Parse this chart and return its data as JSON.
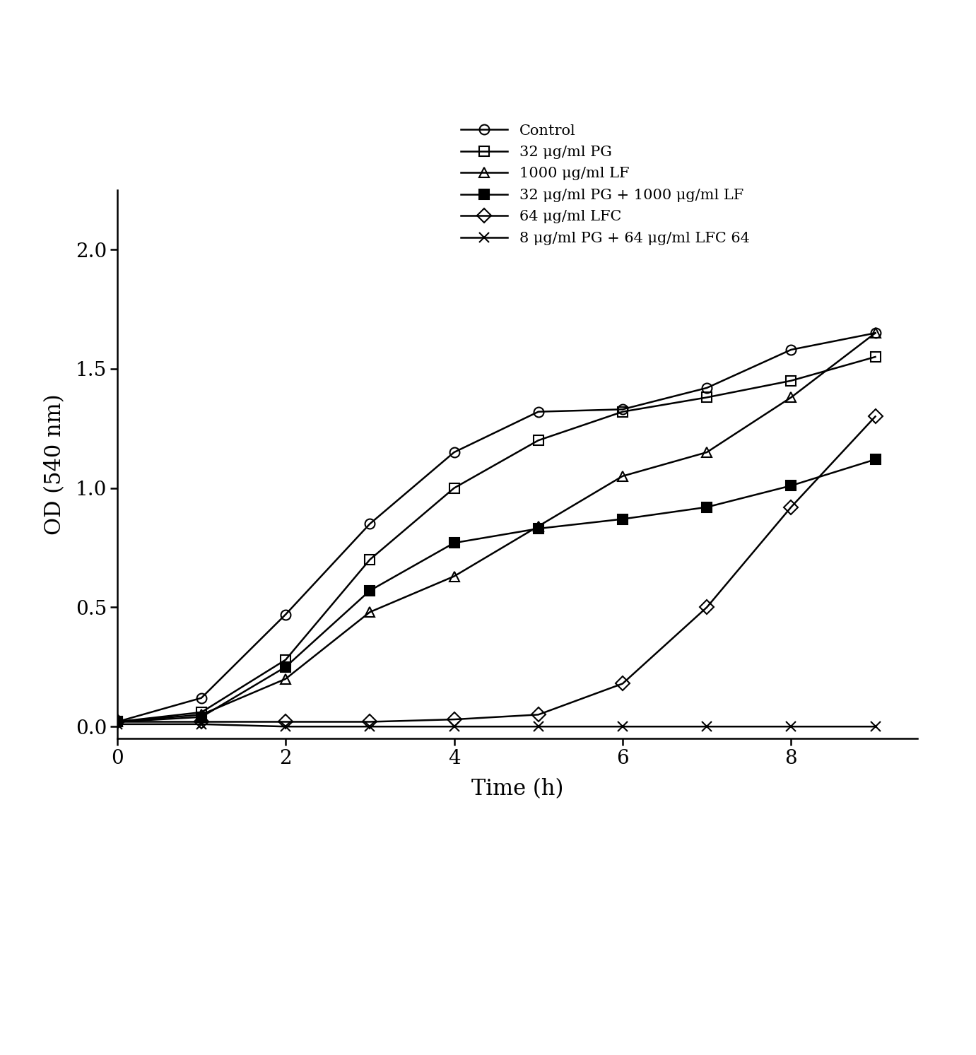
{
  "xlabel": "Time (h)",
  "ylabel": "OD (540 nm)",
  "xlim": [
    0,
    9.5
  ],
  "ylim": [
    -0.05,
    2.25
  ],
  "xticks": [
    0,
    2,
    4,
    6,
    8
  ],
  "yticks": [
    0,
    0.5,
    1,
    1.5,
    2
  ],
  "series": [
    {
      "label": "Control",
      "x": [
        0,
        1,
        2,
        3,
        4,
        5,
        6,
        7,
        8,
        9
      ],
      "y": [
        0.02,
        0.12,
        0.47,
        0.85,
        1.15,
        1.32,
        1.33,
        1.42,
        1.58,
        1.65
      ],
      "marker": "o",
      "fillstyle": "none",
      "color": "black",
      "linewidth": 1.8,
      "markersize": 10
    },
    {
      "label": "32 μg/ml PG",
      "x": [
        0,
        1,
        2,
        3,
        4,
        5,
        6,
        7,
        8,
        9
      ],
      "y": [
        0.02,
        0.06,
        0.28,
        0.7,
        1.0,
        1.2,
        1.32,
        1.38,
        1.45,
        1.55
      ],
      "marker": "s",
      "fillstyle": "none",
      "color": "black",
      "linewidth": 1.8,
      "markersize": 10
    },
    {
      "label": "1000 μg/ml LF",
      "x": [
        0,
        1,
        2,
        3,
        4,
        5,
        6,
        7,
        8,
        9
      ],
      "y": [
        0.02,
        0.05,
        0.2,
        0.48,
        0.63,
        0.84,
        1.05,
        1.15,
        1.38,
        1.65
      ],
      "marker": "^",
      "fillstyle": "none",
      "color": "black",
      "linewidth": 1.8,
      "markersize": 10
    },
    {
      "label": "32 μg/ml PG + 1000 μg/ml LF",
      "x": [
        0,
        1,
        2,
        3,
        4,
        5,
        6,
        7,
        8,
        9
      ],
      "y": [
        0.02,
        0.04,
        0.25,
        0.57,
        0.77,
        0.83,
        0.87,
        0.92,
        1.01,
        1.12
      ],
      "marker": "s",
      "fillstyle": "full",
      "color": "black",
      "linewidth": 1.8,
      "markersize": 10
    },
    {
      "label": "64 μg/ml LFC",
      "x": [
        0,
        1,
        2,
        3,
        4,
        5,
        6,
        7,
        8,
        9
      ],
      "y": [
        0.02,
        0.02,
        0.02,
        0.02,
        0.03,
        0.05,
        0.18,
        0.5,
        0.92,
        1.3
      ],
      "marker": "D",
      "fillstyle": "none",
      "color": "black",
      "linewidth": 1.8,
      "markersize": 10
    },
    {
      "label": "8 μg/ml PG + 64 μg/ml LFC 64",
      "x": [
        0,
        1,
        2,
        3,
        4,
        5,
        6,
        7,
        8,
        9
      ],
      "y": [
        0.01,
        0.01,
        0.0,
        0.0,
        0.0,
        0.0,
        0.0,
        0.0,
        0.0,
        0.0
      ],
      "marker": "x",
      "fillstyle": "none",
      "color": "black",
      "linewidth": 1.8,
      "markersize": 10
    }
  ],
  "background_color": "#ffffff",
  "figure_width": 13.81,
  "figure_height": 14.93,
  "legend_fontsize": 15,
  "xlabel_fontsize": 22,
  "ylabel_fontsize": 22,
  "tick_fontsize": 20
}
